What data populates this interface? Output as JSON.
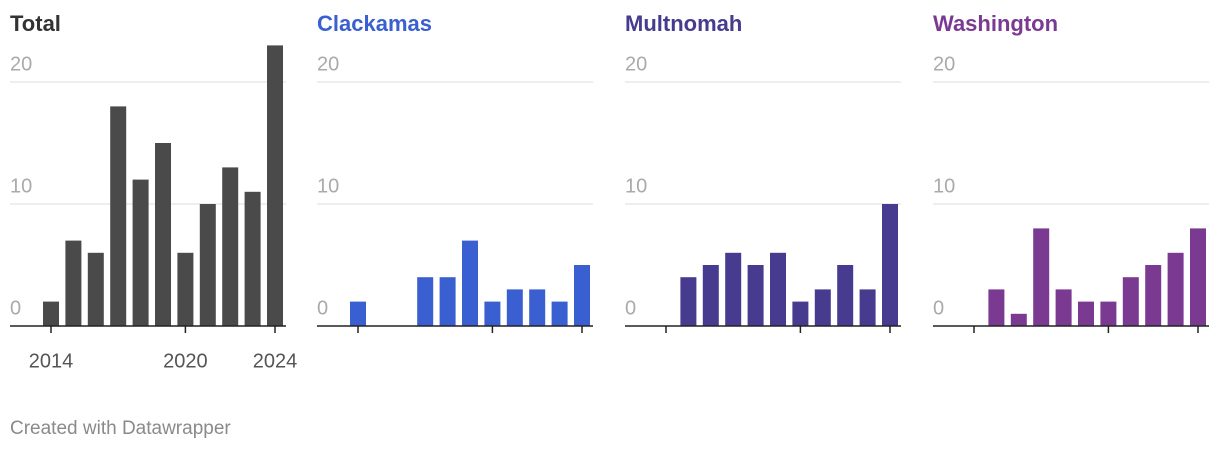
{
  "chart_data": [
    {
      "type": "bar",
      "title": "Total",
      "color": "#4a4a4a",
      "title_color": "#333333",
      "categories": [
        2014,
        null,
        null,
        null,
        null,
        null,
        2020,
        null,
        null,
        null,
        2024
      ],
      "xtick_labels": true,
      "values": [
        2,
        7,
        6,
        18,
        12,
        15,
        6,
        10,
        13,
        11,
        23
      ],
      "ylim": [
        0,
        25
      ],
      "yticks": [
        0,
        10,
        20
      ],
      "grid": true
    },
    {
      "type": "bar",
      "title": "Clackamas",
      "color": "#3a5fd0",
      "title_color": "#3a5fd0",
      "categories": [
        2014,
        null,
        null,
        null,
        null,
        null,
        2020,
        null,
        null,
        null,
        2024
      ],
      "xtick_labels": false,
      "values": [
        2,
        0,
        0,
        4,
        4,
        7,
        2,
        3,
        3,
        2,
        5
      ],
      "ylim": [
        0,
        25
      ],
      "yticks": [
        0,
        10,
        20
      ],
      "grid": true
    },
    {
      "type": "bar",
      "title": "Multnomah",
      "color": "#463b8e",
      "title_color": "#463b8e",
      "categories": [
        2014,
        null,
        null,
        null,
        null,
        null,
        2020,
        null,
        null,
        null,
        2024
      ],
      "xtick_labels": false,
      "values": [
        0,
        4,
        5,
        6,
        5,
        6,
        2,
        3,
        5,
        3,
        10
      ],
      "ylim": [
        0,
        25
      ],
      "yticks": [
        0,
        10,
        20
      ],
      "grid": true
    },
    {
      "type": "bar",
      "title": "Washington",
      "color": "#7b3a92",
      "title_color": "#7b3a92",
      "categories": [
        2014,
        null,
        null,
        null,
        null,
        null,
        2020,
        null,
        null,
        null,
        2024
      ],
      "xtick_labels": false,
      "values": [
        0,
        3,
        1,
        8,
        3,
        2,
        2,
        4,
        5,
        6,
        8
      ],
      "ylim": [
        0,
        25
      ],
      "yticks": [
        0,
        10,
        20
      ],
      "grid": true
    }
  ],
  "footer": "Created with Datawrapper"
}
